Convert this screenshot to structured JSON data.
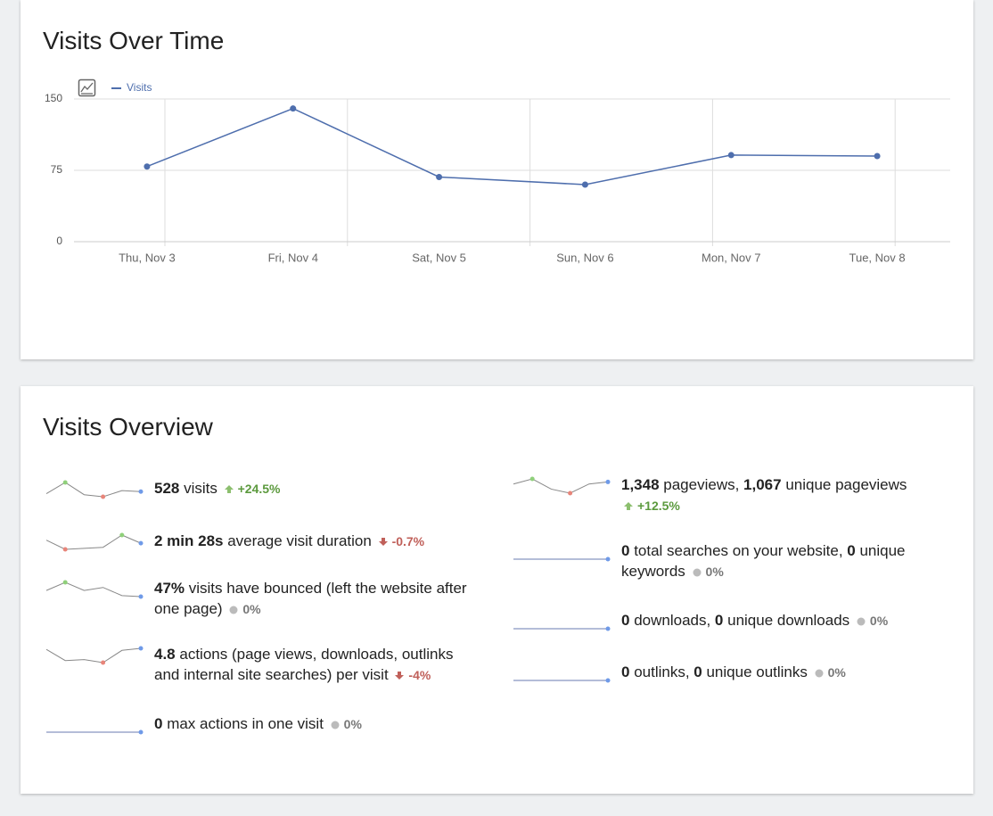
{
  "chart_data": {
    "type": "line",
    "title": "Visits Over Time",
    "categories": [
      "Thu, Nov 3",
      "Fri, Nov 4",
      "Sat, Nov 5",
      "Sun, Nov 6",
      "Mon, Nov 7",
      "Tue, Nov 8"
    ],
    "series": [
      {
        "name": "Visits",
        "color": "#4e6ead",
        "values": [
          79,
          140,
          68,
          60,
          91,
          90
        ]
      }
    ],
    "ylim": [
      0,
      150
    ],
    "yticks": [
      0,
      75,
      150
    ],
    "grid": true
  },
  "overview": {
    "title": "Visits Overview",
    "items": [
      {
        "segments": [
          {
            "text": "528",
            "bold": true
          },
          {
            "text": " visits",
            "bold": false
          }
        ],
        "change": "+24.5%",
        "trend": "up",
        "sparkline": [
          16,
          27,
          15,
          13,
          19,
          18
        ]
      },
      {
        "segments": [
          {
            "text": "2 min 28s",
            "bold": true
          },
          {
            "text": " average visit duration",
            "bold": false
          }
        ],
        "change": "-0.7%",
        "trend": "down",
        "sparkline": [
          23,
          14,
          15,
          16,
          28,
          20
        ]
      },
      {
        "segments": [
          {
            "text": "47%",
            "bold": true
          },
          {
            "text": " visits have bounced (left the website after one page)",
            "bold": false
          }
        ],
        "change": "0%",
        "trend": "none",
        "sparkline": [
          14,
          22,
          14,
          17,
          9,
          8
        ]
      },
      {
        "segments": [
          {
            "text": "4.8",
            "bold": true
          },
          {
            "text": " actions (page views, downloads, outlinks and internal site searches) per visit",
            "bold": false
          }
        ],
        "change": "-4%",
        "trend": "down",
        "sparkline": [
          28,
          17,
          18,
          15,
          27,
          29
        ]
      },
      {
        "segments": [
          {
            "text": "0",
            "bold": true
          },
          {
            "text": " max actions in one visit",
            "bold": false
          }
        ],
        "change": "0%",
        "trend": "none",
        "sparkline": [
          0,
          0,
          0,
          0,
          0,
          0
        ]
      },
      {
        "segments": [
          {
            "text": "1,348",
            "bold": true
          },
          {
            "text": " pageviews, ",
            "bold": false
          },
          {
            "text": "1,067",
            "bold": true
          },
          {
            "text": " unique pageviews",
            "bold": false
          }
        ],
        "change": "+12.5%",
        "trend": "up",
        "sparkline": [
          24,
          29,
          19,
          15,
          24,
          26
        ]
      },
      {
        "segments": [
          {
            "text": "0",
            "bold": true
          },
          {
            "text": " total searches on your website, ",
            "bold": false
          },
          {
            "text": "0",
            "bold": true
          },
          {
            "text": " unique keywords",
            "bold": false
          }
        ],
        "change": "0%",
        "trend": "none",
        "sparkline": [
          0,
          0,
          0,
          0,
          0,
          0
        ]
      },
      {
        "segments": [
          {
            "text": "0",
            "bold": true
          },
          {
            "text": " downloads, ",
            "bold": false
          },
          {
            "text": "0",
            "bold": true
          },
          {
            "text": " unique downloads",
            "bold": false
          }
        ],
        "change": "0%",
        "trend": "none",
        "sparkline": [
          0,
          0,
          0,
          0,
          0,
          0
        ]
      },
      {
        "segments": [
          {
            "text": "0",
            "bold": true
          },
          {
            "text": " outlinks, ",
            "bold": false
          },
          {
            "text": "0",
            "bold": true
          },
          {
            "text": " unique outlinks",
            "bold": false
          }
        ],
        "change": "0%",
        "trend": "none",
        "sparkline": [
          0,
          0,
          0,
          0,
          0,
          0
        ]
      }
    ]
  }
}
